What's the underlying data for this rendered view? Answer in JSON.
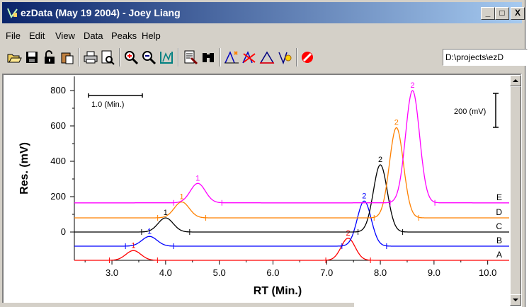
{
  "window": {
    "title": "ezData (May 19 2004) - Joey Liang",
    "controls": [
      "_",
      "□",
      "X"
    ]
  },
  "menu": [
    "File",
    "Edit",
    "View",
    "Data",
    "Peaks",
    "Help"
  ],
  "toolbar": {
    "buttons": [
      "open-icon",
      "save-icon",
      "unlock-icon",
      "paste-icon",
      "print-icon",
      "print-preview-icon",
      "zoom-in-icon",
      "zoom-out-icon",
      "zoom-fit-icon",
      "report-icon",
      "binoculars-icon",
      "peak-add-icon",
      "peak-delete-icon",
      "baseline-icon",
      "integrate-icon",
      "stop-icon"
    ],
    "path": "D:\\projects\\ezD"
  },
  "chart_data": {
    "type": "line",
    "xlabel": "RT (Min.)",
    "ylabel": "Res. (mV)",
    "xlim": [
      2.3,
      10.4
    ],
    "ylim": [
      -160,
      880
    ],
    "xticks": [
      "3.0",
      "4.0",
      "5.0",
      "6.0",
      "7.0",
      "8.0",
      "9.0",
      "10.0"
    ],
    "yticks": [
      "0",
      "200",
      "400",
      "600",
      "800"
    ],
    "scale_bar_x": "1.0 (Min.)",
    "scale_bar_y": "200 (mV)",
    "series": [
      {
        "name": "A",
        "color": "#ff0000",
        "baseline": -160,
        "peaks": [
          {
            "label": "1",
            "rt": 3.4,
            "height": 55,
            "width": 0.14
          },
          {
            "label": "2",
            "rt": 7.4,
            "height": 125,
            "width": 0.13
          }
        ]
      },
      {
        "name": "B",
        "color": "#0000ff",
        "baseline": -80,
        "peaks": [
          {
            "label": "1",
            "rt": 3.7,
            "height": 55,
            "width": 0.14
          },
          {
            "label": "2",
            "rt": 7.7,
            "height": 255,
            "width": 0.13
          }
        ]
      },
      {
        "name": "C",
        "color": "#000000",
        "baseline": 0,
        "peaks": [
          {
            "label": "1",
            "rt": 4.0,
            "height": 80,
            "width": 0.14
          },
          {
            "label": "2",
            "rt": 8.0,
            "height": 380,
            "width": 0.13
          }
        ]
      },
      {
        "name": "D",
        "color": "#ff8000",
        "baseline": 80,
        "peaks": [
          {
            "label": "1",
            "rt": 4.3,
            "height": 90,
            "width": 0.14
          },
          {
            "label": "2",
            "rt": 8.3,
            "height": 510,
            "width": 0.13
          }
        ]
      },
      {
        "name": "E",
        "color": "#ff00ff",
        "baseline": 165,
        "peaks": [
          {
            "label": "1",
            "rt": 4.6,
            "height": 110,
            "width": 0.14
          },
          {
            "label": "2",
            "rt": 8.6,
            "height": 635,
            "width": 0.13
          }
        ]
      }
    ]
  }
}
